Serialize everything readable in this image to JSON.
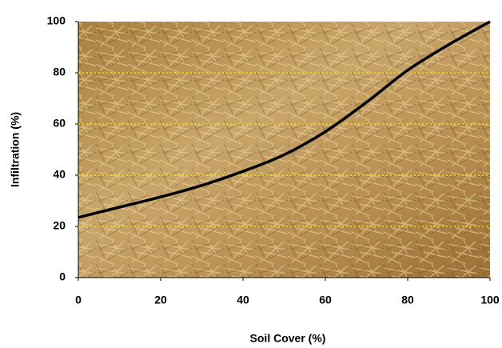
{
  "chart_data": {
    "type": "line",
    "x_label": "Soil Cover (%)",
    "y_label": "Infiltration (%)",
    "x": [
      0,
      10,
      20,
      30,
      40,
      50,
      60,
      70,
      80,
      90,
      100
    ],
    "values": [
      23.5,
      27.5,
      31.5,
      36,
      41.5,
      48,
      57,
      68.5,
      81,
      91,
      100
    ],
    "color": "#000000",
    "xlim": [
      0,
      100
    ],
    "xticks": [
      0,
      20,
      40,
      60,
      80,
      100
    ],
    "ylim": [
      0,
      100
    ],
    "yticks": [
      0,
      20,
      40,
      60,
      80,
      100
    ],
    "grid": true,
    "grid_color": "#f2e200"
  }
}
